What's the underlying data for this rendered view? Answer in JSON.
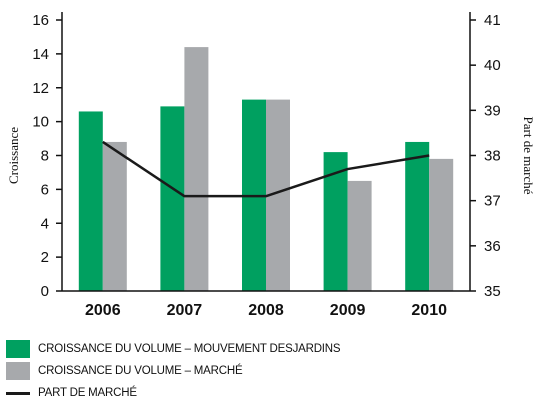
{
  "chart_data": {
    "type": "bar",
    "categories": [
      "2006",
      "2007",
      "2008",
      "2009",
      "2010"
    ],
    "highlight_category": "2010",
    "series": [
      {
        "name": "CROISSANCE DU VOLUME – MOUVEMENT DESJARDINS",
        "type": "bar",
        "axis": "left",
        "color": "#00a060",
        "values": [
          10.6,
          10.9,
          11.3,
          8.2,
          8.8
        ]
      },
      {
        "name": "CROISSANCE DU VOLUME – MARCHÉ",
        "type": "bar",
        "axis": "left",
        "color": "#a7a9ac",
        "values": [
          8.8,
          14.4,
          11.3,
          6.5,
          7.8
        ]
      },
      {
        "name": "PART DE MARCHÉ",
        "type": "line",
        "axis": "right",
        "color": "#1a1a1a",
        "values": [
          38.3,
          37.1,
          37.1,
          37.7,
          38.0
        ]
      }
    ],
    "ylabel": "Croissance",
    "ylim": [
      0,
      16
    ],
    "yticks": [
      "0",
      "2",
      "4",
      "6",
      "8",
      "10",
      "12",
      "14",
      "16"
    ],
    "y2label": "Part de marché",
    "y2lim": [
      35,
      41
    ],
    "y2ticks": [
      "35",
      "36",
      "37",
      "38",
      "39",
      "40",
      "41"
    ],
    "grid": false,
    "highlight_color": "#00a060",
    "legend_position": "bottom-left"
  }
}
